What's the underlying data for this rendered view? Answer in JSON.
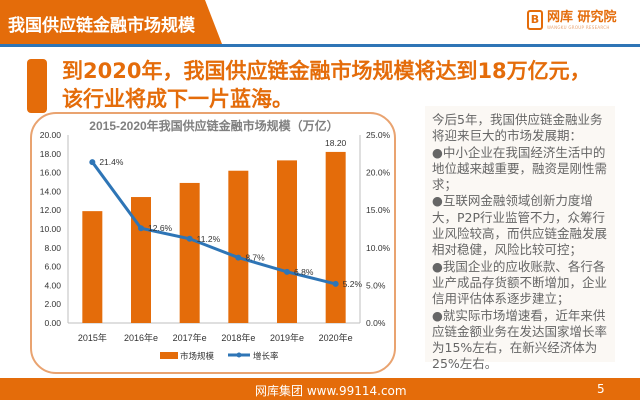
{
  "header": {
    "title": "我国供应链金融市场规模",
    "logo_name": "网库 研究院",
    "logo_sub": "WANGKU GROUP RESEARCH"
  },
  "headline": {
    "line1": "到2020年，我国供应链金融市场规模将达到18万亿元，",
    "line2": "该行业将成下一片蓝海。"
  },
  "sidebar_text": [
    "今后5年，我国供应链金融业务将迎来巨大的市场发展期：",
    "●中小企业在我国经济生活中的地位越来越重要，融资是刚性需求；",
    "●互联网金融领域创新力度增大，P2P行业监管不力，众筹行业风险较高，而供应链金融发展相对稳健，风险比较可控；",
    "●我国企业的应收账款、各行各业产成品存货额不断增加，企业信用评估体系逐步建立；",
    "●就实际市场增速看，近年来供应链金额业务在发达国家增长率为15%左右，在新兴经济体为25%左右。"
  ],
  "footer": {
    "text": "网库集团 www.99114.com",
    "page": "5"
  },
  "colors": {
    "brand": "#e46c0a",
    "line": "#2e75b6"
  },
  "chart_data": {
    "type": "bar+line",
    "title": "2015-2020年我国供应链金融市场规模（万亿）",
    "categories": [
      "2015年",
      "2016年e",
      "2017年e",
      "2018年e",
      "2019年e",
      "2020年e"
    ],
    "series": [
      {
        "name": "市场规模",
        "type": "bar",
        "axis": "left",
        "values": [
          11.9,
          13.4,
          14.9,
          16.2,
          17.3,
          18.2
        ],
        "data_labels": [
          "",
          "",
          "",
          "",
          "",
          "18.20"
        ]
      },
      {
        "name": "增长率",
        "type": "line",
        "axis": "right",
        "values": [
          21.4,
          12.6,
          11.2,
          8.7,
          6.8,
          5.2
        ],
        "data_labels": [
          "21.4%",
          "12.6%",
          "11.2%",
          "8.7%",
          "6.8%",
          "5.2%"
        ]
      }
    ],
    "yleft": {
      "lim": [
        0,
        20
      ],
      "ticks": [
        "0.00",
        "2.00",
        "4.00",
        "6.00",
        "8.00",
        "10.00",
        "12.00",
        "14.00",
        "16.00",
        "18.00",
        "20.00"
      ]
    },
    "yright": {
      "lim": [
        0,
        25
      ],
      "ticks": [
        "0.0%",
        "5.0%",
        "10.0%",
        "15.0%",
        "20.0%",
        "25.0%"
      ]
    },
    "legend": "bottom",
    "grid": false
  }
}
